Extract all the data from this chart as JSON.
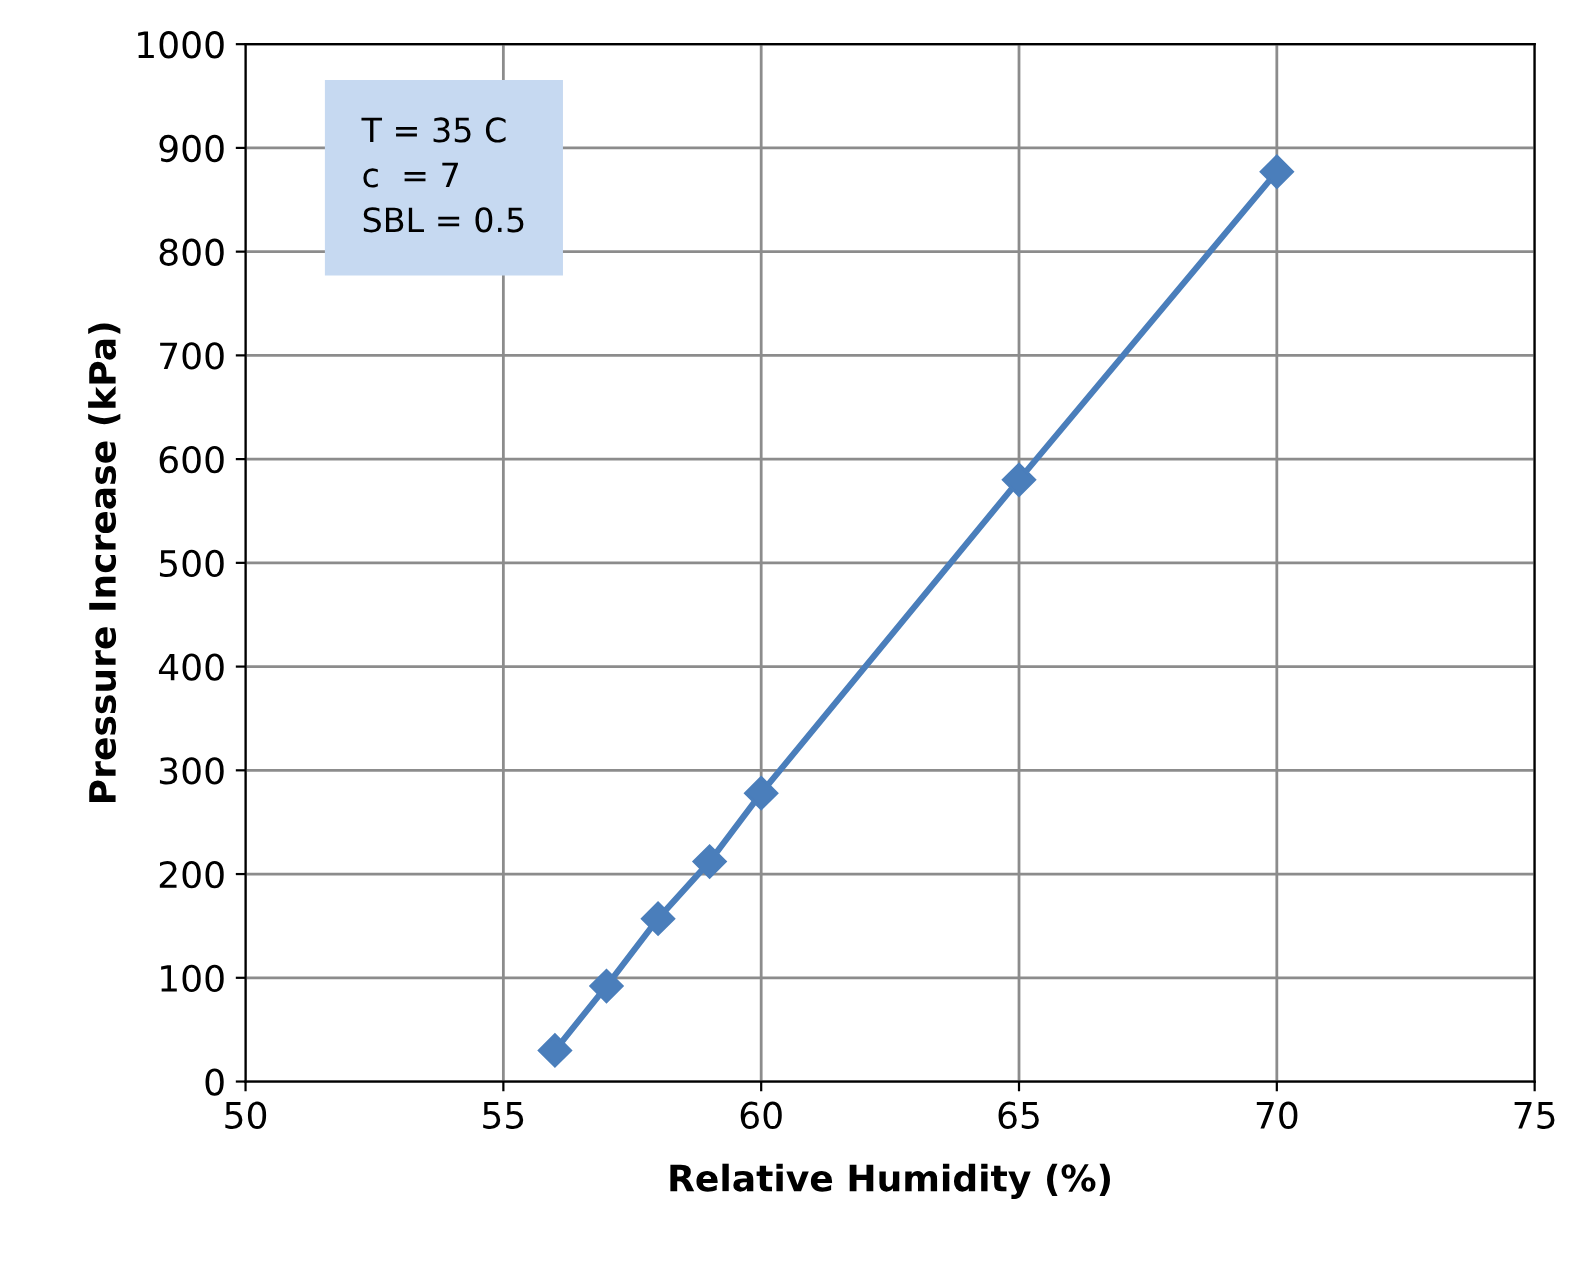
{
  "chart_data": {
    "type": "line",
    "xlabel": "Relative Humidity (%)",
    "ylabel": "Pressure Increase (kPa)",
    "annotations": [
      "T = 35 C",
      "c  = 7",
      "SBL = 0.5"
    ],
    "series": [
      {
        "color": "#4a7ebb",
        "x": [
          56,
          57,
          58,
          59,
          60,
          65,
          70
        ],
        "values": [
          30,
          92,
          157,
          212,
          278,
          580,
          877
        ]
      }
    ],
    "xlim": [
      50,
      75
    ],
    "xticks": [
      50,
      55,
      60,
      65,
      70,
      75
    ],
    "ylim": [
      0,
      1000
    ],
    "yticks": [
      0,
      100,
      200,
      300,
      400,
      500,
      600,
      700,
      800,
      900,
      1000
    ],
    "grid": true,
    "marker": "diamond",
    "line_style": "solid",
    "legend": false
  }
}
